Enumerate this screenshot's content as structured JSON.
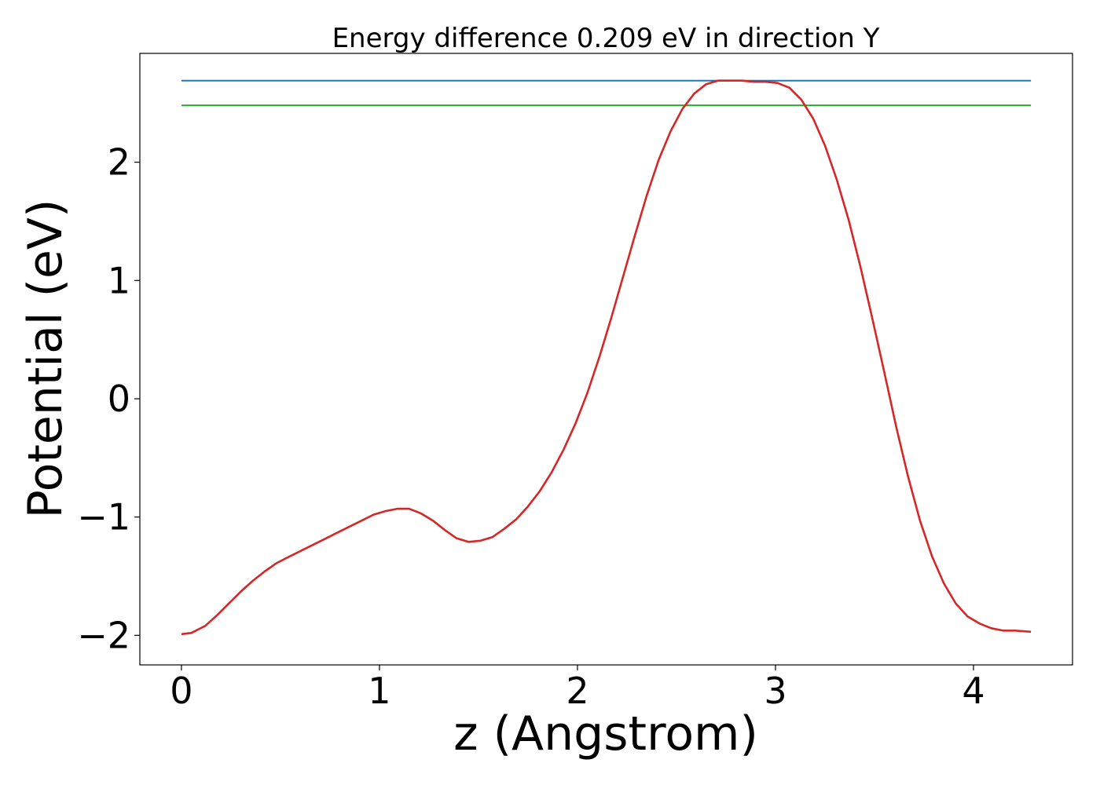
{
  "chart_data": {
    "type": "line",
    "title": "Energy difference 0.209 eV in direction Y",
    "xlabel": "z (Angstrom)",
    "ylabel": "Potential (eV)",
    "xlim": [
      -0.21,
      4.5
    ],
    "ylim": [
      -2.25,
      2.92
    ],
    "xticks": [
      0,
      1,
      2,
      3,
      4
    ],
    "xtick_labels": [
      "0",
      "1",
      "2",
      "3",
      "4"
    ],
    "yticks": [
      -2,
      -1,
      0,
      1,
      2
    ],
    "ytick_labels": [
      "−2",
      "−1",
      "0",
      "1",
      "2"
    ],
    "grid": false,
    "legend": "none",
    "series": [
      {
        "color": "#1f77b4",
        "x": [
          0,
          4.29
        ],
        "y": [
          2.69,
          2.69
        ]
      },
      {
        "color": "#2ca02c",
        "x": [
          0,
          4.29
        ],
        "y": [
          2.48,
          2.48
        ]
      },
      {
        "color": "#d62728",
        "x": [
          0.0,
          0.05,
          0.12,
          0.18,
          0.24,
          0.3,
          0.36,
          0.42,
          0.48,
          0.55,
          0.61,
          0.67,
          0.73,
          0.79,
          0.85,
          0.91,
          0.97,
          1.03,
          1.09,
          1.15,
          1.21,
          1.27,
          1.33,
          1.39,
          1.45,
          1.51,
          1.57,
          1.63,
          1.69,
          1.75,
          1.81,
          1.87,
          1.93,
          1.99,
          2.05,
          2.11,
          2.17,
          2.23,
          2.29,
          2.35,
          2.41,
          2.47,
          2.53,
          2.59,
          2.65,
          2.71,
          2.77,
          2.83,
          2.89,
          2.95,
          3.01,
          3.07,
          3.13,
          3.19,
          3.25,
          3.31,
          3.37,
          3.43,
          3.49,
          3.55,
          3.61,
          3.67,
          3.73,
          3.79,
          3.85,
          3.91,
          3.97,
          4.03,
          4.09,
          4.15,
          4.21,
          4.29
        ],
        "y": [
          -1.99,
          -1.98,
          -1.92,
          -1.83,
          -1.73,
          -1.63,
          -1.54,
          -1.46,
          -1.39,
          -1.33,
          -1.28,
          -1.23,
          -1.18,
          -1.13,
          -1.08,
          -1.03,
          -0.98,
          -0.95,
          -0.93,
          -0.93,
          -0.97,
          -1.03,
          -1.11,
          -1.18,
          -1.21,
          -1.2,
          -1.17,
          -1.1,
          -1.02,
          -0.91,
          -0.78,
          -0.62,
          -0.43,
          -0.21,
          0.05,
          0.35,
          0.68,
          1.03,
          1.38,
          1.72,
          2.02,
          2.26,
          2.45,
          2.58,
          2.66,
          2.69,
          2.69,
          2.69,
          2.68,
          2.68,
          2.67,
          2.63,
          2.53,
          2.37,
          2.14,
          1.85,
          1.51,
          1.11,
          0.67,
          0.22,
          -0.24,
          -0.66,
          -1.03,
          -1.33,
          -1.56,
          -1.73,
          -1.84,
          -1.9,
          -1.94,
          -1.96,
          -1.96,
          -1.97
        ]
      }
    ]
  }
}
